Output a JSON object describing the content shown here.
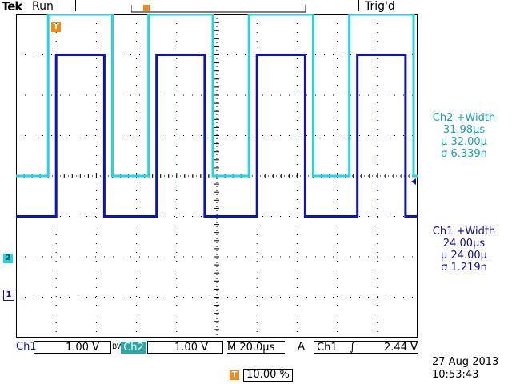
{
  "header": {
    "brand": "Tek",
    "run_state": "Run",
    "trigger_status": "Trig'd"
  },
  "measurements": {
    "ch2": {
      "title": "Ch2 +Width",
      "value": "31.98µs",
      "mean": "µ 32.00µ",
      "sigma": "σ 6.339n"
    },
    "ch1": {
      "title": "Ch1 +Width",
      "value": "24.00µs",
      "mean": "µ 24.00µ",
      "sigma": "σ 1.219n"
    }
  },
  "status_bar": {
    "ch1_label": "Ch1",
    "ch1_scale": "1.00 V",
    "bw_label": "BW",
    "ch2_label": "Ch2",
    "ch2_scale": "1.00 V",
    "timebase": "M 20.0µs",
    "trigger_mode": "A",
    "trigger_source": "Ch1",
    "trigger_slope": "∫",
    "trigger_level": "2.44 V"
  },
  "footer": {
    "trigger_position": "10.00 %",
    "date": "27 Aug 2013",
    "time": "10:53:43"
  },
  "markers": {
    "trigger_marker": "T",
    "ch1_marker": "1",
    "ch2_marker": "2"
  },
  "colors": {
    "ch1": "#0d14b4",
    "ch2": "#22d6e0",
    "trigger": "#f08a1a",
    "grid": "#000000"
  },
  "chart_data": {
    "type": "line",
    "x_unit": "µs",
    "y_unit": "div",
    "series": [
      {
        "name": "Ch1",
        "values": [
          [
            0,
            -1.0
          ],
          [
            10,
            -1.0
          ],
          [
            10,
            3.0
          ],
          [
            22,
            3.0
          ],
          [
            22,
            -1.0
          ],
          [
            35,
            -1.0
          ],
          [
            35,
            3.0
          ],
          [
            47,
            3.0
          ],
          [
            47,
            -1.0
          ],
          [
            60,
            -1.0
          ],
          [
            60,
            3.0
          ],
          [
            72,
            3.0
          ],
          [
            72,
            -1.0
          ],
          [
            85,
            -1.0
          ],
          [
            85,
            3.0
          ],
          [
            97,
            3.0
          ],
          [
            97,
            -1.0
          ],
          [
            100,
            -1.0
          ]
        ]
      },
      {
        "name": "Ch2",
        "values": [
          [
            0,
            0.0
          ],
          [
            8,
            0.0
          ],
          [
            8,
            4.0
          ],
          [
            24,
            4.0
          ],
          [
            24,
            0.0
          ],
          [
            33,
            0.0
          ],
          [
            33,
            4.0
          ],
          [
            49,
            4.0
          ],
          [
            49,
            0.0
          ],
          [
            58,
            0.0
          ],
          [
            58,
            4.0
          ],
          [
            74,
            4.0
          ],
          [
            74,
            0.0
          ],
          [
            83,
            0.0
          ],
          [
            83,
            4.0
          ],
          [
            99,
            4.0
          ],
          [
            99,
            0.0
          ],
          [
            100,
            0.0
          ]
        ]
      }
    ],
    "xlim": [
      0,
      100
    ],
    "ylim": [
      -4,
      4
    ],
    "grid": true
  }
}
